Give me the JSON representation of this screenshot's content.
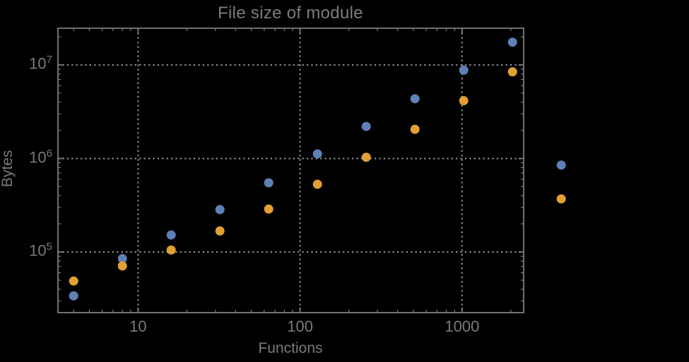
{
  "title": "File size of module",
  "axes": {
    "x_label": "Functions",
    "y_label": "Bytes"
  },
  "colors": {
    "background": "#000000",
    "frame": "#7d7d7d",
    "grid": "#8e8e8e",
    "text": "#7a7a7a",
    "series_blue": "#5E81B5",
    "series_orange": "#E0A033"
  },
  "chart_data": {
    "type": "scatter",
    "title": "File size of module",
    "xlabel": "Functions",
    "ylabel": "Bytes",
    "x_scale": "log",
    "y_scale": "log",
    "xlim": [
      3.2,
      2400
    ],
    "ylim": [
      22500,
      24700000
    ],
    "grid": {
      "style": "dotted",
      "x_values": [
        10,
        100,
        1000
      ],
      "y_values": [
        100000,
        1000000,
        10000000
      ]
    },
    "x": [
      4,
      8,
      16,
      32,
      64,
      128,
      256,
      512,
      1024,
      2048,
      4096
    ],
    "series": [
      {
        "name": "blue",
        "color": "#5E81B5",
        "values": [
          34000,
          85000,
          152000,
          284000,
          550000,
          1120000,
          2200000,
          4350000,
          8800000,
          17500000,
          850000
        ]
      },
      {
        "name": "orange",
        "color": "#E0A033",
        "values": [
          49000,
          71000,
          105000,
          168000,
          288000,
          530000,
          1030000,
          2050000,
          4150000,
          8450000,
          370000
        ]
      }
    ],
    "x_tick_labels": [
      {
        "value": 10,
        "label": "10"
      },
      {
        "value": 100,
        "label": "100"
      },
      {
        "value": 1000,
        "label": "1000"
      }
    ],
    "y_tick_labels": [
      {
        "value": 100000,
        "base": "10",
        "exponent": "5"
      },
      {
        "value": 1000000,
        "base": "10",
        "exponent": "6"
      },
      {
        "value": 10000000,
        "base": "10",
        "exponent": "7"
      }
    ],
    "note_points_outside_frame": "the x=4096 pair is drawn to the right of the plot frame (unclipped)"
  }
}
